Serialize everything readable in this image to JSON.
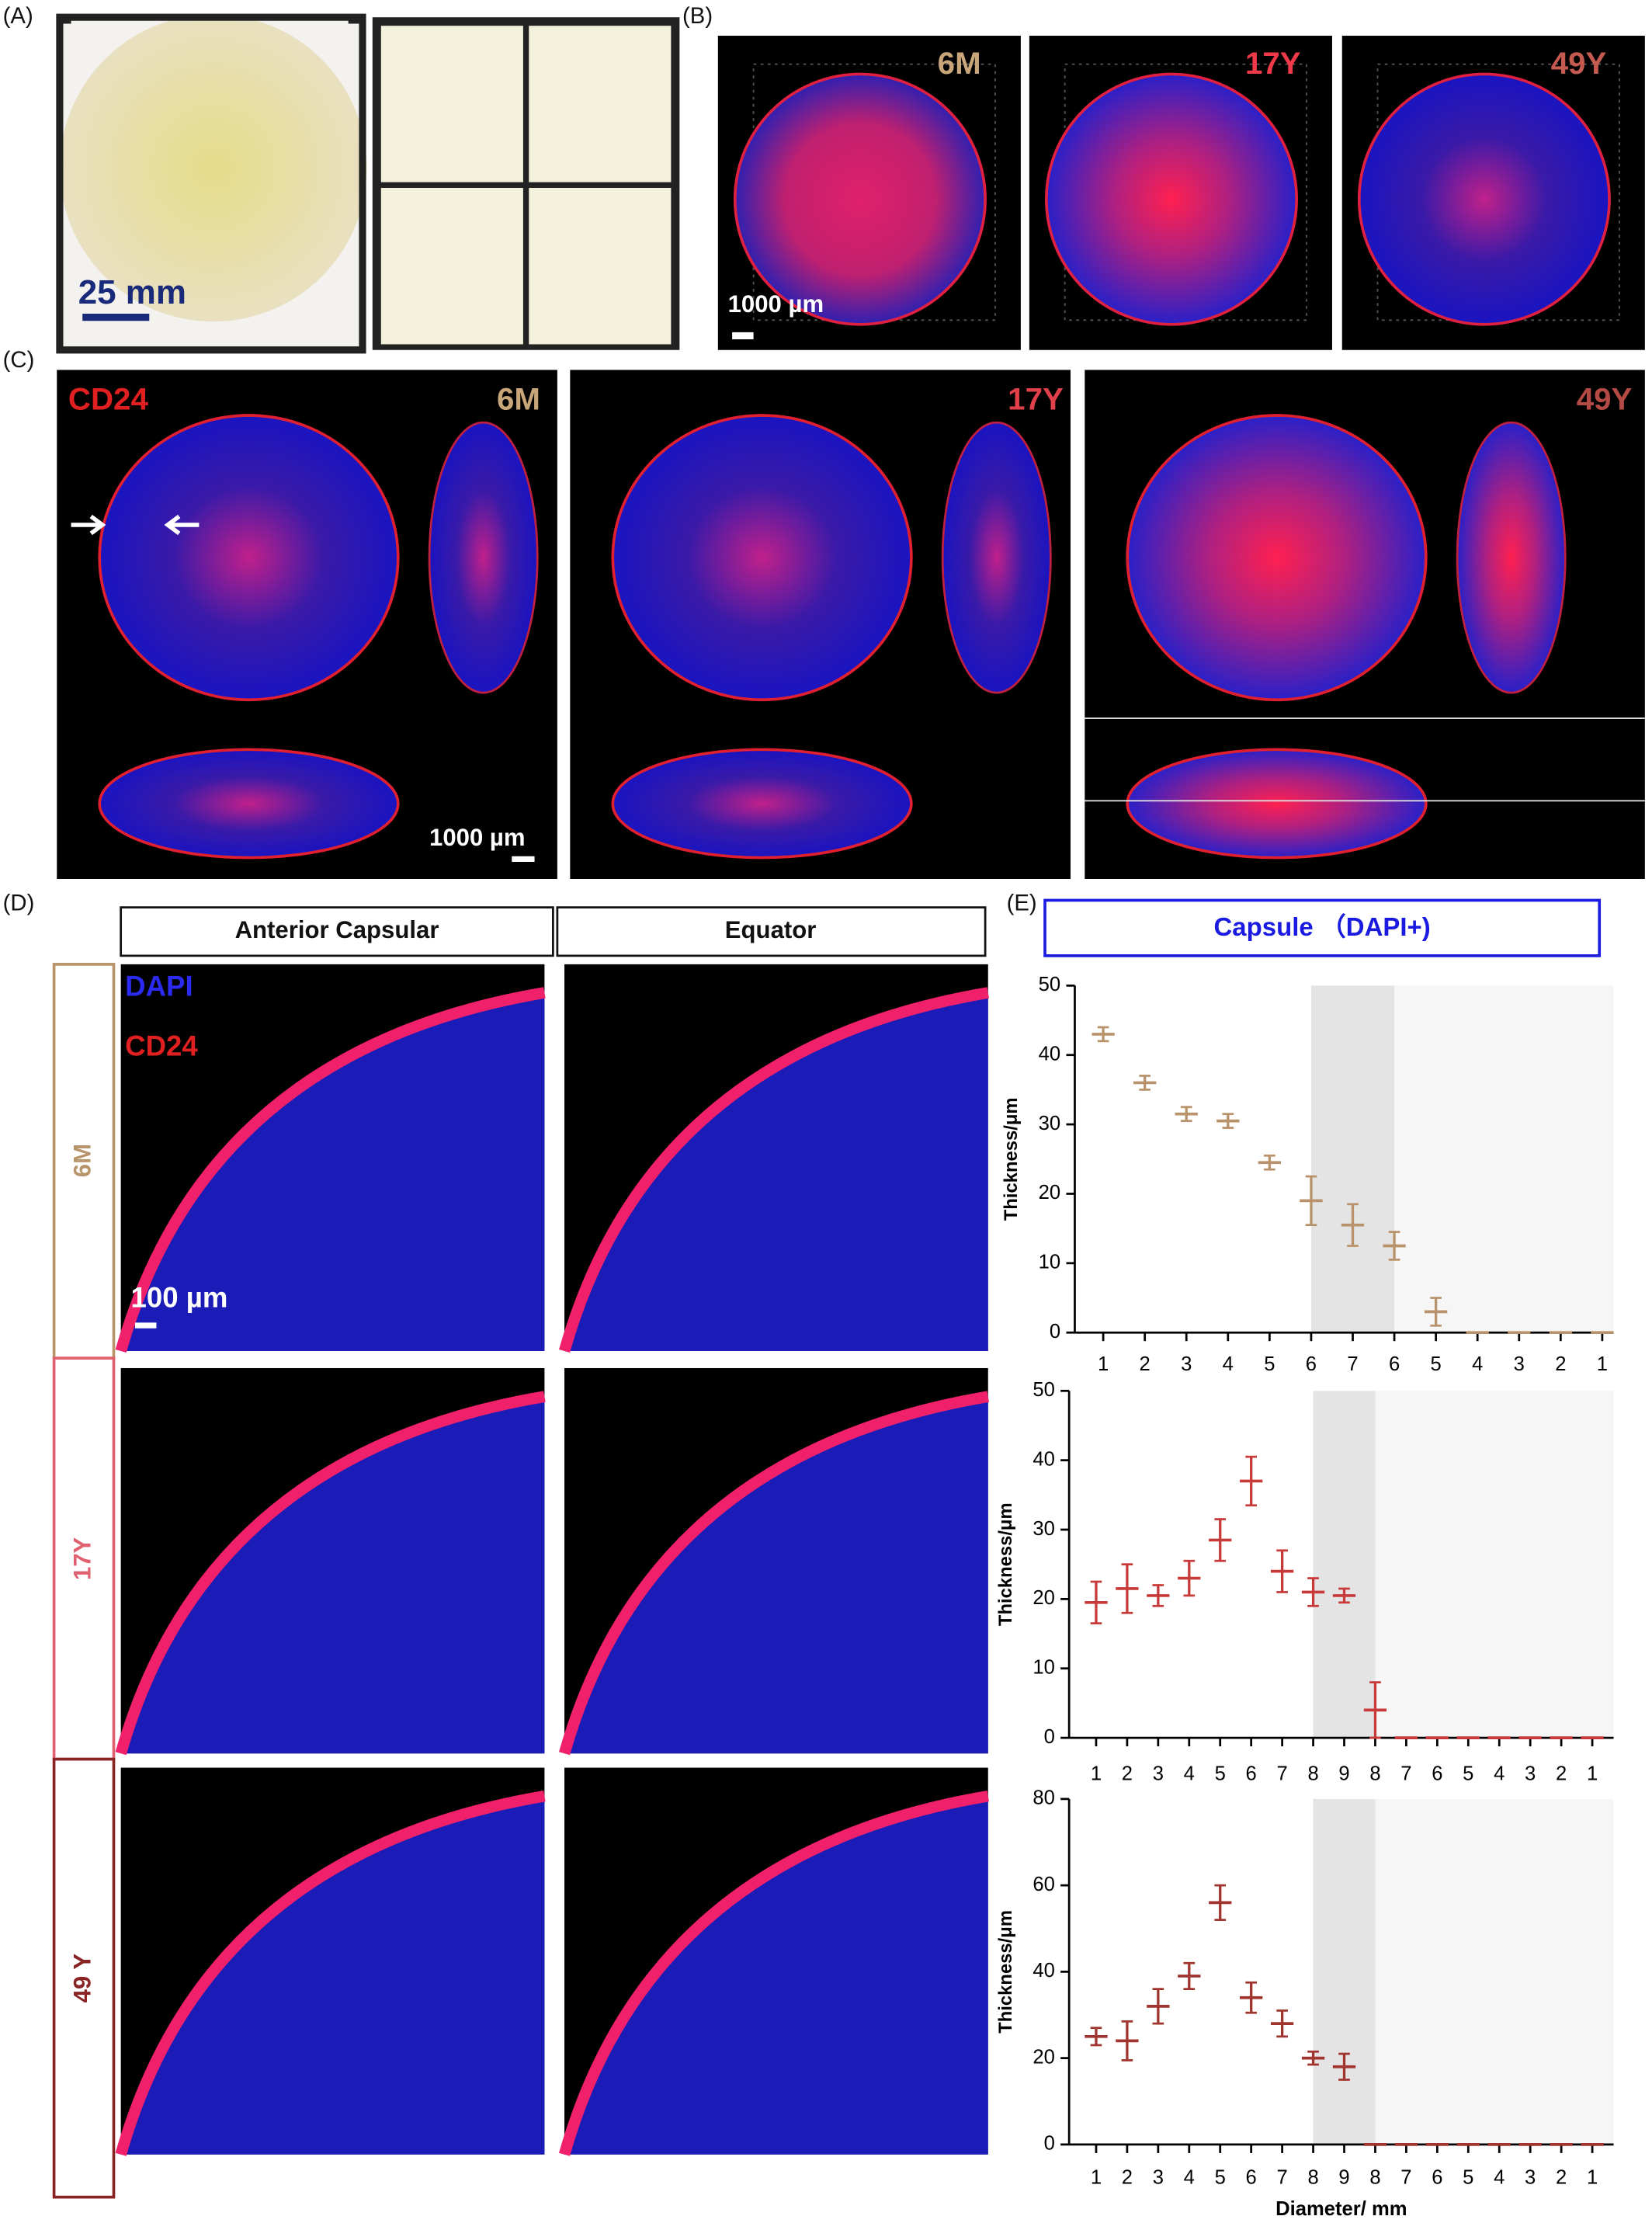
{
  "panels": {
    "A": {
      "label": "(A)",
      "scale_bar": "25 mm"
    },
    "B": {
      "label": "(B)",
      "samples": [
        "6M",
        "17Y",
        "49Y"
      ],
      "scale_bar": "1000 µm"
    },
    "C": {
      "label": "(C)",
      "stain": "CD24",
      "samples": [
        "6M",
        "17Y",
        "49Y"
      ],
      "scale_bar": "1000 µm"
    },
    "D": {
      "label": "(D)",
      "columns": [
        "Anterior Capsular",
        "Equator"
      ],
      "stains": [
        "DAPI",
        "CD24"
      ],
      "rows": [
        "6M",
        "17Y",
        "49 Y"
      ],
      "scale_bar": "100 µm"
    },
    "E": {
      "label": "(E)",
      "title": "Capsule （DAPI+)"
    }
  },
  "chart_data": [
    {
      "type": "dot",
      "ylabel": "Thickness/μm",
      "color": "#b8926a",
      "categories": [
        "1",
        "2",
        "3",
        "4",
        "5",
        "6",
        "7",
        "6",
        "5",
        "4",
        "3",
        "2",
        "1"
      ],
      "values": [
        43,
        36,
        31.5,
        30.5,
        24.5,
        19,
        15.5,
        12.5,
        3,
        0,
        0,
        0,
        0
      ],
      "errors": [
        1,
        1,
        1,
        1,
        1,
        3.5,
        3,
        2,
        2,
        0,
        0,
        0,
        0
      ],
      "ylim": [
        0,
        50
      ],
      "yticks": [
        0,
        10,
        20,
        30,
        40,
        50
      ]
    },
    {
      "type": "dot",
      "ylabel": "Thickness/μm",
      "color": "#c83a3a",
      "categories": [
        "1",
        "2",
        "3",
        "4",
        "5",
        "6",
        "7",
        "8",
        "9",
        "8",
        "7",
        "6",
        "5",
        "4",
        "3",
        "2",
        "1"
      ],
      "values": [
        19.5,
        21.5,
        20.5,
        23,
        28.5,
        37,
        24,
        21,
        20.5,
        4,
        0,
        0,
        0,
        0,
        0,
        0,
        0
      ],
      "errors": [
        3,
        3.5,
        1.5,
        2.5,
        3,
        3.5,
        3,
        2,
        1,
        4,
        0,
        0,
        0,
        0,
        0,
        0,
        0
      ],
      "ylim": [
        0,
        50
      ],
      "yticks": [
        0,
        10,
        20,
        30,
        40,
        50
      ]
    },
    {
      "type": "dot",
      "ylabel": "Thickness/μm",
      "xlabel": "Diameter/ mm",
      "color": "#a0342e",
      "categories": [
        "1",
        "2",
        "3",
        "4",
        "5",
        "6",
        "7",
        "8",
        "9",
        "8",
        "7",
        "6",
        "5",
        "4",
        "3",
        "2",
        "1"
      ],
      "values": [
        25,
        24,
        32,
        39,
        56,
        34,
        28,
        20,
        18,
        0,
        0,
        0,
        0,
        0,
        0,
        0,
        0
      ],
      "errors": [
        2,
        4.5,
        4,
        3,
        4,
        3.5,
        3,
        1.5,
        3,
        0,
        0,
        0,
        0,
        0,
        0,
        0,
        0
      ],
      "ylim": [
        0,
        80
      ],
      "yticks": [
        0,
        20,
        40,
        60,
        80
      ]
    }
  ]
}
